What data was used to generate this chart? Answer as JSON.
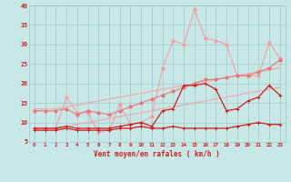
{
  "x": [
    0,
    1,
    2,
    3,
    4,
    5,
    6,
    7,
    8,
    9,
    10,
    11,
    12,
    13,
    14,
    15,
    16,
    17,
    18,
    19,
    20,
    21,
    22,
    23
  ],
  "line_spiky_light": [
    8.5,
    8.5,
    8.5,
    16.5,
    12.5,
    12.5,
    7.5,
    8,
    14.5,
    9.5,
    10,
    11.5,
    24,
    31,
    30,
    39,
    31.5,
    31,
    30,
    22,
    22,
    22,
    30.5,
    26.5
  ],
  "line_med_light": [
    13,
    13,
    13,
    13.5,
    12,
    13,
    12.5,
    12,
    13,
    14,
    15,
    16,
    17,
    18,
    19,
    20,
    21,
    21,
    21.5,
    22,
    22,
    23,
    24,
    26
  ],
  "line_trend1": [
    13.5,
    13.5,
    13.5,
    14,
    14.5,
    15,
    15.5,
    16,
    16.5,
    17,
    17.5,
    18,
    18.5,
    19,
    19.5,
    20,
    20.5,
    21,
    21.5,
    22,
    22.5,
    23,
    23.5,
    24
  ],
  "line_trend2": [
    8.5,
    8.5,
    8.5,
    9,
    9.5,
    10,
    10.5,
    11,
    11.5,
    12,
    12.5,
    13,
    13.5,
    14,
    14.5,
    15,
    15.5,
    16,
    16.5,
    17,
    17.5,
    18,
    18.5,
    19
  ],
  "line_dark1": [
    8.5,
    8.5,
    8.5,
    9,
    8.5,
    8.5,
    8.5,
    8.5,
    9,
    9.5,
    10,
    9,
    13,
    13.5,
    19.5,
    19.5,
    20,
    18.5,
    13,
    13.5,
    15.5,
    16.5,
    19.5,
    17
  ],
  "line_dark2": [
    8,
    8,
    8,
    8.5,
    8,
    8,
    8,
    8,
    8.5,
    8.5,
    9,
    8.5,
    8.5,
    9,
    8.5,
    8.5,
    8.5,
    8.5,
    8.5,
    9,
    9.5,
    10,
    9.5,
    9.5
  ],
  "bg_color": "#c8e8e8",
  "grid_color": "#a0c8c8",
  "color_light_pink": "#f0a0a0",
  "color_med_pink": "#e87878",
  "color_dark_red": "#cc2020",
  "color_trend": "#e8b0b0",
  "xlabel": "Vent moyen/en rafales ( km/h )",
  "ylim": [
    5,
    40
  ],
  "xlim": [
    -0.5,
    23.5
  ],
  "yticks": [
    5,
    10,
    15,
    20,
    25,
    30,
    35,
    40
  ],
  "xticks": [
    0,
    1,
    2,
    3,
    4,
    5,
    6,
    7,
    8,
    9,
    10,
    11,
    12,
    13,
    14,
    15,
    16,
    17,
    18,
    19,
    20,
    21,
    22,
    23
  ]
}
